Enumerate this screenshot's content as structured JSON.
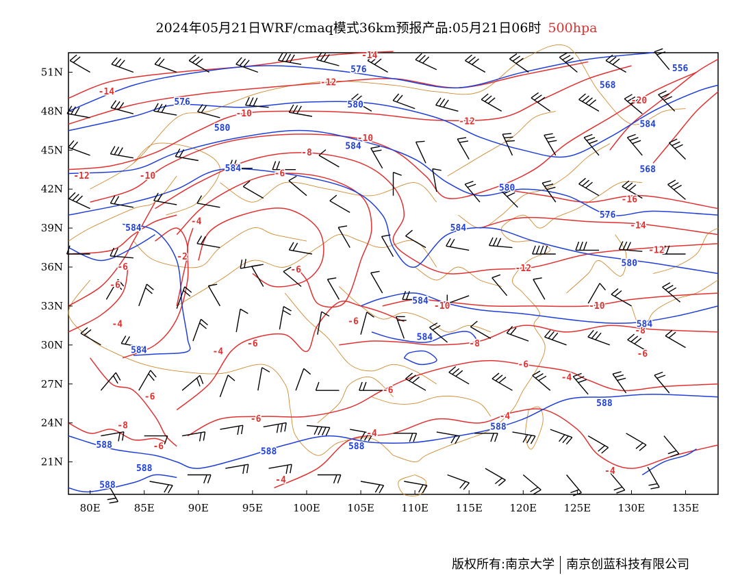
{
  "title": {
    "main": "2024年05月21日WRF/cmaq模式36km预报产品:05月21日06时",
    "level": "500hpa"
  },
  "colors": {
    "temperature": "#e03030",
    "geopotential": "#1f3fd8",
    "border": "#d08a30",
    "wind": "#000000",
    "frame": "#000000"
  },
  "map": {
    "lon_range": [
      78,
      138
    ],
    "lat_range": [
      18.5,
      52.5
    ],
    "lon_ticks": [
      "80E",
      "85E",
      "90E",
      "95E",
      "100E",
      "105E",
      "110E",
      "115E",
      "120E",
      "125E",
      "130E",
      "135E"
    ],
    "lat_ticks": [
      "51N",
      "48N",
      "45N",
      "42N",
      "39N",
      "36N",
      "33N",
      "30N",
      "27N",
      "24N",
      "21N"
    ]
  },
  "temperature_labels": [
    {
      "text": "-14",
      "lon": 81.5,
      "lat": 49.5
    },
    {
      "text": "-14",
      "lon": 105.8,
      "lat": 52.3
    },
    {
      "text": "-12",
      "lon": 102,
      "lat": 50.2
    },
    {
      "text": "-12",
      "lon": 79.2,
      "lat": 43.0
    },
    {
      "text": "-12",
      "lon": 114.8,
      "lat": 47.2
    },
    {
      "text": "-10",
      "lon": 94.2,
      "lat": 47.8
    },
    {
      "text": "-10",
      "lon": 105.4,
      "lat": 45.9
    },
    {
      "text": "-10",
      "lon": 85.3,
      "lat": 43.0
    },
    {
      "text": "-8",
      "lon": 100,
      "lat": 44.8
    },
    {
      "text": "-6",
      "lon": 97.5,
      "lat": 43.2
    },
    {
      "text": "-4",
      "lon": 89.8,
      "lat": 39.5
    },
    {
      "text": "-2",
      "lon": 88.5,
      "lat": 36.8
    },
    {
      "text": "-6",
      "lon": 83.0,
      "lat": 36.0
    },
    {
      "text": "-6",
      "lon": 82.3,
      "lat": 34.6
    },
    {
      "text": "-6",
      "lon": 99.0,
      "lat": 35.8
    },
    {
      "text": "-4",
      "lon": 82.5,
      "lat": 31.6
    },
    {
      "text": "-4",
      "lon": 91.8,
      "lat": 29.5
    },
    {
      "text": "-6",
      "lon": 95.0,
      "lat": 30.1
    },
    {
      "text": "-6",
      "lon": 104.3,
      "lat": 31.8
    },
    {
      "text": "-8",
      "lon": 115.5,
      "lat": 30.1
    },
    {
      "text": "-6",
      "lon": 120.0,
      "lat": 28.5
    },
    {
      "text": "-6",
      "lon": 131.0,
      "lat": 29.3
    },
    {
      "text": "-8",
      "lon": 130.8,
      "lat": 31.1
    },
    {
      "text": "-10",
      "lon": 112.5,
      "lat": 33.0
    },
    {
      "text": "-10",
      "lon": 126.8,
      "lat": 33.0
    },
    {
      "text": "-12",
      "lon": 120,
      "lat": 35.9
    },
    {
      "text": "-12",
      "lon": 132.3,
      "lat": 37.3
    },
    {
      "text": "-14",
      "lon": 130.6,
      "lat": 39.2
    },
    {
      "text": "-16",
      "lon": 129.8,
      "lat": 41.2
    },
    {
      "text": "-20",
      "lon": 130.7,
      "lat": 48.8
    },
    {
      "text": "-6",
      "lon": 85.5,
      "lat": 26.0
    },
    {
      "text": "-8",
      "lon": 83.0,
      "lat": 23.8
    },
    {
      "text": "-6",
      "lon": 86.3,
      "lat": 22.2
    },
    {
      "text": "-6",
      "lon": 95.3,
      "lat": 24.3
    },
    {
      "text": "-6",
      "lon": 107.5,
      "lat": 26.5
    },
    {
      "text": "-4",
      "lon": 106.0,
      "lat": 23.2
    },
    {
      "text": "-4",
      "lon": 118.3,
      "lat": 24.5
    },
    {
      "text": "-4",
      "lon": 124.0,
      "lat": 27.5
    },
    {
      "text": "-4",
      "lon": 128.0,
      "lat": 20.3
    },
    {
      "text": "-4",
      "lon": 97.6,
      "lat": 19.6
    }
  ],
  "height_labels": [
    {
      "text": "576",
      "lon": 104.8,
      "lat": 51.2
    },
    {
      "text": "576",
      "lon": 88.5,
      "lat": 48.7
    },
    {
      "text": "580",
      "lon": 104.5,
      "lat": 48.5
    },
    {
      "text": "580",
      "lon": 92.2,
      "lat": 46.7
    },
    {
      "text": "584",
      "lon": 104.3,
      "lat": 45.3
    },
    {
      "text": "584",
      "lon": 93.2,
      "lat": 43.6
    },
    {
      "text": "556",
      "lon": 134.5,
      "lat": 51.3
    },
    {
      "text": "568",
      "lon": 127.8,
      "lat": 50.0
    },
    {
      "text": "584",
      "lon": 131.5,
      "lat": 47.0
    },
    {
      "text": "568",
      "lon": 131.5,
      "lat": 43.5
    },
    {
      "text": "576",
      "lon": 127.8,
      "lat": 40.0
    },
    {
      "text": "580",
      "lon": 118.5,
      "lat": 42.1
    },
    {
      "text": "584",
      "lon": 114.0,
      "lat": 39.0
    },
    {
      "text": "584",
      "lon": 84.0,
      "lat": 39.0
    },
    {
      "text": "580",
      "lon": 129.8,
      "lat": 36.3
    },
    {
      "text": "584",
      "lon": 110.5,
      "lat": 33.4
    },
    {
      "text": "584",
      "lon": 110.9,
      "lat": 30.6
    },
    {
      "text": "584",
      "lon": 84.5,
      "lat": 29.6
    },
    {
      "text": "584",
      "lon": 131.2,
      "lat": 31.6
    },
    {
      "text": "588",
      "lon": 127.5,
      "lat": 25.5
    },
    {
      "text": "588",
      "lon": 117.7,
      "lat": 23.7
    },
    {
      "text": "588",
      "lon": 104.6,
      "lat": 22.2
    },
    {
      "text": "588",
      "lon": 96.5,
      "lat": 21.8
    },
    {
      "text": "588",
      "lon": 81.3,
      "lat": 22.3
    },
    {
      "text": "588",
      "lon": 85.0,
      "lat": 20.5
    },
    {
      "text": "588",
      "lon": 81.6,
      "lat": 19.2
    }
  ],
  "credits": {
    "left": "版权所有:南京大学",
    "right": "南京创蓝科技有限公司"
  }
}
